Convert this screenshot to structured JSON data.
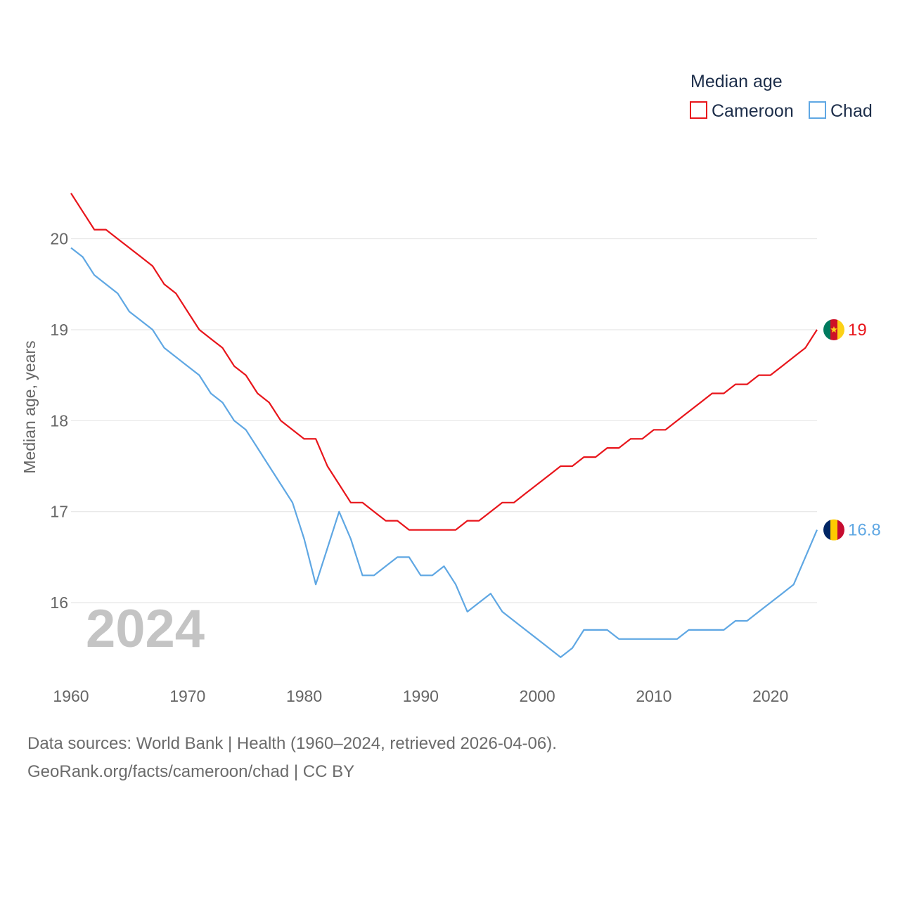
{
  "chart_data": {
    "type": "line",
    "title": "",
    "ylabel": "Median age, years",
    "xlabel": "",
    "year_label": "2024",
    "legend": {
      "title": "Median age",
      "position": "top-right"
    },
    "xlim": [
      1960,
      2024
    ],
    "ylim": [
      15.05,
      20.7
    ],
    "x_ticks": [
      1960,
      1970,
      1980,
      1990,
      2000,
      2010,
      2020
    ],
    "y_ticks": [
      16,
      17,
      18,
      19,
      20
    ],
    "grid": true,
    "x": [
      1960,
      1961,
      1962,
      1963,
      1964,
      1965,
      1966,
      1967,
      1968,
      1969,
      1970,
      1971,
      1972,
      1973,
      1974,
      1975,
      1976,
      1977,
      1978,
      1979,
      1980,
      1981,
      1982,
      1983,
      1984,
      1985,
      1986,
      1987,
      1988,
      1989,
      1990,
      1991,
      1992,
      1993,
      1994,
      1995,
      1996,
      1997,
      1998,
      1999,
      2000,
      2001,
      2002,
      2003,
      2004,
      2005,
      2006,
      2007,
      2008,
      2009,
      2010,
      2011,
      2012,
      2013,
      2014,
      2015,
      2016,
      2017,
      2018,
      2019,
      2020,
      2021,
      2022,
      2023,
      2024
    ],
    "series": [
      {
        "name": "Cameroon",
        "color": "#e8151b",
        "end_label": "19",
        "values": [
          20.5,
          20.3,
          20.1,
          20.1,
          20.0,
          19.9,
          19.8,
          19.7,
          19.5,
          19.4,
          19.2,
          19.0,
          18.9,
          18.8,
          18.6,
          18.5,
          18.3,
          18.2,
          18.0,
          17.9,
          17.8,
          17.8,
          17.5,
          17.3,
          17.1,
          17.1,
          17.0,
          16.9,
          16.9,
          16.8,
          16.8,
          16.8,
          16.8,
          16.8,
          16.9,
          16.9,
          17.0,
          17.1,
          17.1,
          17.2,
          17.3,
          17.4,
          17.5,
          17.5,
          17.6,
          17.6,
          17.7,
          17.7,
          17.8,
          17.8,
          17.9,
          17.9,
          18.0,
          18.1,
          18.2,
          18.3,
          18.3,
          18.4,
          18.4,
          18.5,
          18.5,
          18.6,
          18.7,
          18.8,
          19.0
        ]
      },
      {
        "name": "Chad",
        "color": "#5fa7e3",
        "end_label": "16.8",
        "values": [
          19.9,
          19.8,
          19.6,
          19.5,
          19.4,
          19.2,
          19.1,
          19.0,
          18.8,
          18.7,
          18.6,
          18.5,
          18.3,
          18.2,
          18.0,
          17.9,
          17.7,
          17.5,
          17.3,
          17.1,
          16.7,
          16.2,
          16.6,
          17.0,
          16.7,
          16.3,
          16.3,
          16.4,
          16.5,
          16.5,
          16.3,
          16.3,
          16.4,
          16.2,
          15.9,
          16.0,
          16.1,
          15.9,
          15.8,
          15.7,
          15.6,
          15.5,
          15.4,
          15.5,
          15.7,
          15.7,
          15.7,
          15.6,
          15.6,
          15.6,
          15.6,
          15.6,
          15.6,
          15.7,
          15.7,
          15.7,
          15.7,
          15.8,
          15.8,
          15.9,
          16.0,
          16.1,
          16.2,
          16.5,
          16.8
        ]
      }
    ]
  },
  "footer": {
    "source_line": "Data sources: World Bank | Health (1960–2024, retrieved 2026-04-06).",
    "credit_line": "GeoRank.org/facts/cameroon/chad | CC BY"
  },
  "colors": {
    "grid": "#e6e6e6",
    "tick": "#666666",
    "legend_text": "#1d2e4a"
  }
}
